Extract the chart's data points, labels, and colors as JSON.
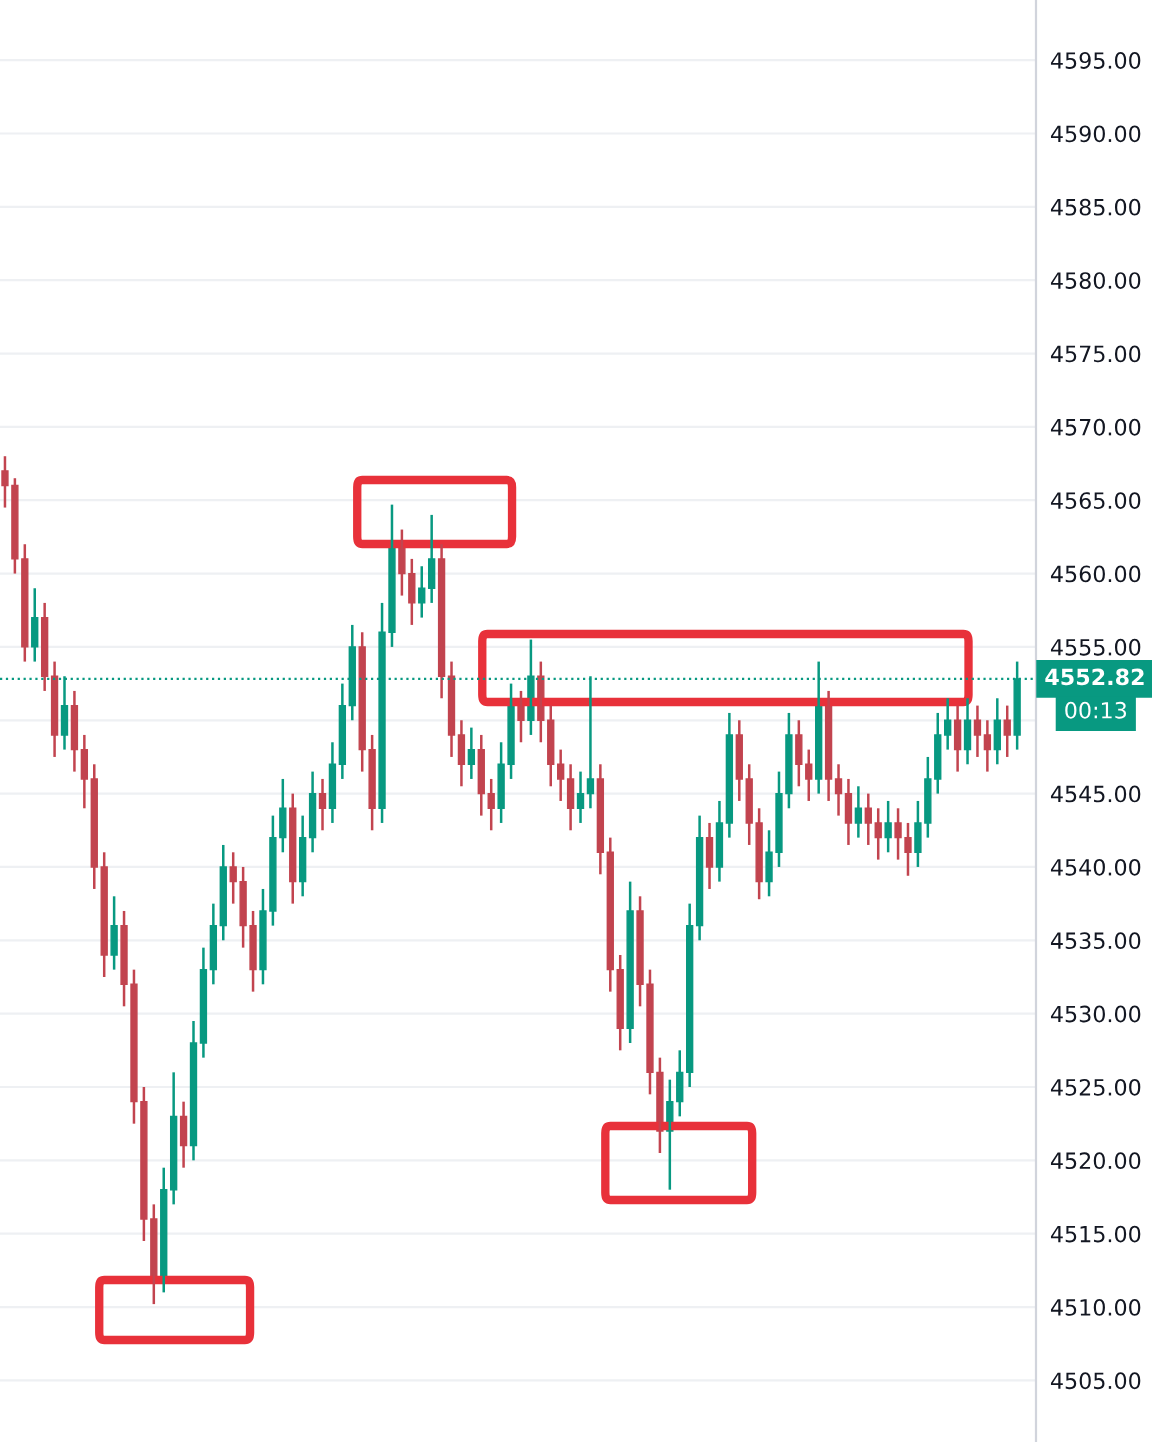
{
  "chart_data": {
    "type": "candlestick",
    "categories": [
      null,
      null,
      null,
      null,
      null,
      null,
      null,
      null,
      null,
      null,
      null,
      null,
      null,
      null,
      null,
      null,
      null,
      null,
      null,
      null,
      null,
      null,
      null,
      null,
      null,
      null,
      null,
      null,
      null,
      null,
      null,
      null,
      null,
      null,
      null,
      null,
      null,
      null,
      null,
      null,
      null,
      null,
      null,
      null,
      null,
      null,
      null,
      null,
      null,
      null,
      null,
      null,
      null,
      null,
      null,
      null,
      null,
      null,
      null,
      null,
      null,
      null,
      null,
      null,
      null,
      null,
      null,
      null,
      null,
      null,
      null,
      null,
      null,
      null,
      null,
      null,
      null,
      null,
      null,
      null,
      null,
      null,
      null,
      null,
      null,
      null,
      null,
      null,
      null,
      null,
      null,
      null,
      null,
      null,
      null,
      null,
      null,
      null,
      null,
      null,
      null,
      null,
      null
    ],
    "ohlc": [
      [
        4567,
        4568,
        4564.5,
        4566
      ],
      [
        4566,
        4566.5,
        4560,
        4561
      ],
      [
        4561,
        4562,
        4554,
        4555
      ],
      [
        4555,
        4559,
        4554,
        4557
      ],
      [
        4557,
        4558,
        4552,
        4553
      ],
      [
        4553,
        4554,
        4547.5,
        4549
      ],
      [
        4549,
        4553,
        4548,
        4551
      ],
      [
        4551,
        4552,
        4546.5,
        4548
      ],
      [
        4548,
        4549,
        4544,
        4546
      ],
      [
        4546,
        4547,
        4538.5,
        4540
      ],
      [
        4540,
        4541,
        4532.5,
        4534
      ],
      [
        4534,
        4538,
        4533,
        4536
      ],
      [
        4536,
        4537,
        4530.5,
        4532
      ],
      [
        4532,
        4533,
        4522.5,
        4524
      ],
      [
        4524,
        4525,
        4514.5,
        4516
      ],
      [
        4516,
        4517,
        4510.2,
        4512
      ],
      [
        4512,
        4519.5,
        4511,
        4518
      ],
      [
        4518,
        4526,
        4517,
        4523
      ],
      [
        4523,
        4524,
        4519.5,
        4521
      ],
      [
        4521,
        4529.5,
        4520,
        4528
      ],
      [
        4528,
        4534.5,
        4527,
        4533
      ],
      [
        4533,
        4537.5,
        4532,
        4536
      ],
      [
        4536,
        4541.5,
        4535,
        4540
      ],
      [
        4540,
        4541,
        4537.5,
        4539
      ],
      [
        4539,
        4540,
        4534.5,
        4536
      ],
      [
        4536,
        4537,
        4531.5,
        4533
      ],
      [
        4533,
        4538.5,
        4532,
        4537
      ],
      [
        4537,
        4543.5,
        4536,
        4542
      ],
      [
        4542,
        4546,
        4541,
        4544
      ],
      [
        4544,
        4545,
        4537.5,
        4539
      ],
      [
        4539,
        4543.5,
        4538,
        4542
      ],
      [
        4542,
        4546.5,
        4541,
        4545
      ],
      [
        4545,
        4546,
        4542.5,
        4544
      ],
      [
        4544,
        4548.5,
        4543,
        4547
      ],
      [
        4547,
        4552.5,
        4546,
        4551
      ],
      [
        4551,
        4556.5,
        4550,
        4555
      ],
      [
        4555,
        4556,
        4546.5,
        4548
      ],
      [
        4548,
        4549,
        4542.5,
        4544
      ],
      [
        4544,
        4558,
        4543,
        4556
      ],
      [
        4556,
        4564.7,
        4555,
        4562
      ],
      [
        4562,
        4563,
        4558.5,
        4560
      ],
      [
        4560,
        4561,
        4556.5,
        4558
      ],
      [
        4558,
        4560.5,
        4557,
        4559
      ],
      [
        4559,
        4564,
        4558,
        4561
      ],
      [
        4561,
        4562,
        4551.5,
        4553
      ],
      [
        4553,
        4554,
        4547.5,
        4549
      ],
      [
        4549,
        4550,
        4545.5,
        4547
      ],
      [
        4547,
        4549.5,
        4546,
        4548
      ],
      [
        4548,
        4549,
        4543.5,
        4545
      ],
      [
        4545,
        4546,
        4542.5,
        4544
      ],
      [
        4544,
        4548.5,
        4543,
        4547
      ],
      [
        4547,
        4552.5,
        4546,
        4551
      ],
      [
        4551,
        4552,
        4548.5,
        4550
      ],
      [
        4550,
        4555.5,
        4549,
        4553
      ],
      [
        4553,
        4554,
        4548.5,
        4550
      ],
      [
        4550,
        4551,
        4545.5,
        4547
      ],
      [
        4547,
        4548,
        4544.5,
        4546
      ],
      [
        4546,
        4547,
        4542.5,
        4544
      ],
      [
        4544,
        4546.5,
        4543,
        4545
      ],
      [
        4545,
        4553,
        4544,
        4546
      ],
      [
        4546,
        4547,
        4539.5,
        4541
      ],
      [
        4541,
        4542,
        4531.5,
        4533
      ],
      [
        4533,
        4534,
        4527.5,
        4529
      ],
      [
        4529,
        4539,
        4528,
        4537
      ],
      [
        4537,
        4538,
        4530.5,
        4532
      ],
      [
        4532,
        4533,
        4524.5,
        4526
      ],
      [
        4526,
        4527,
        4520.5,
        4522
      ],
      [
        4522,
        4525.5,
        4518,
        4524
      ],
      [
        4524,
        4527.5,
        4523,
        4526
      ],
      [
        4526,
        4537.5,
        4525,
        4536
      ],
      [
        4536,
        4543.5,
        4535,
        4542
      ],
      [
        4542,
        4543,
        4538.5,
        4540
      ],
      [
        4540,
        4544.5,
        4539,
        4543
      ],
      [
        4543,
        4550.5,
        4542,
        4549
      ],
      [
        4549,
        4550,
        4544.5,
        4546
      ],
      [
        4546,
        4547,
        4541.5,
        4543
      ],
      [
        4543,
        4544,
        4537.8,
        4539
      ],
      [
        4539,
        4542.5,
        4538,
        4541
      ],
      [
        4541,
        4546.5,
        4540,
        4545
      ],
      [
        4545,
        4550.5,
        4544,
        4549
      ],
      [
        4549,
        4550,
        4545.5,
        4547
      ],
      [
        4547,
        4548,
        4544.5,
        4546
      ],
      [
        4546,
        4554,
        4545,
        4551
      ],
      [
        4551,
        4552,
        4544.5,
        4546
      ],
      [
        4546,
        4547,
        4543.5,
        4545
      ],
      [
        4545,
        4546,
        4541.5,
        4543
      ],
      [
        4543,
        4545.5,
        4542,
        4544
      ],
      [
        4544,
        4545,
        4541.5,
        4543
      ],
      [
        4543,
        4544,
        4540.5,
        4542
      ],
      [
        4542,
        4544.5,
        4541,
        4543
      ],
      [
        4543,
        4544,
        4540.5,
        4542
      ],
      [
        4542,
        4543,
        4539.4,
        4541
      ],
      [
        4541,
        4544.5,
        4540,
        4543
      ],
      [
        4543,
        4547.5,
        4542,
        4546
      ],
      [
        4546,
        4550.5,
        4545,
        4549
      ],
      [
        4549,
        4551.5,
        4548,
        4550
      ],
      [
        4550,
        4551,
        4546.5,
        4548
      ],
      [
        4548,
        4551.5,
        4547,
        4550
      ],
      [
        4550,
        4551,
        4547.5,
        4549
      ],
      [
        4549,
        4550,
        4546.5,
        4548
      ],
      [
        4548,
        4551.5,
        4547,
        4550
      ],
      [
        4550,
        4551,
        4547.5,
        4549
      ],
      [
        4549,
        4554,
        4548,
        4552.82
      ]
    ],
    "ylim": [
      4500.8,
      4599.1
    ],
    "yticks": [
      {
        "value": 4505,
        "label": "4505.00"
      },
      {
        "value": 4510,
        "label": "4510.00"
      },
      {
        "value": 4515,
        "label": "4515.00"
      },
      {
        "value": 4520,
        "label": "4520.00"
      },
      {
        "value": 4525,
        "label": "4525.00"
      },
      {
        "value": 4530,
        "label": "4530.00"
      },
      {
        "value": 4535,
        "label": "4535.00"
      },
      {
        "value": 4540,
        "label": "4540.00"
      },
      {
        "value": 4545,
        "label": "4545.00"
      },
      {
        "value": 4550,
        "label": null
      },
      {
        "value": 4555,
        "label": "4555.00"
      },
      {
        "value": 4560,
        "label": "4560.00"
      },
      {
        "value": 4565,
        "label": "4565.00"
      },
      {
        "value": 4570,
        "label": "4570.00"
      },
      {
        "value": 4575,
        "label": "4575.00"
      },
      {
        "value": 4580,
        "label": "4580.00"
      },
      {
        "value": 4585,
        "label": "4585.00"
      },
      {
        "value": 4590,
        "label": "4590.00"
      },
      {
        "value": 4595,
        "label": "4595.00"
      }
    ],
    "ref_lines": [
      {
        "axis": "y",
        "value": 4552.82,
        "label": "4552.82",
        "color": "#089981",
        "line_style": "dotted"
      }
    ],
    "annotations": [
      "00:13"
    ],
    "grid": "y"
  }
}
